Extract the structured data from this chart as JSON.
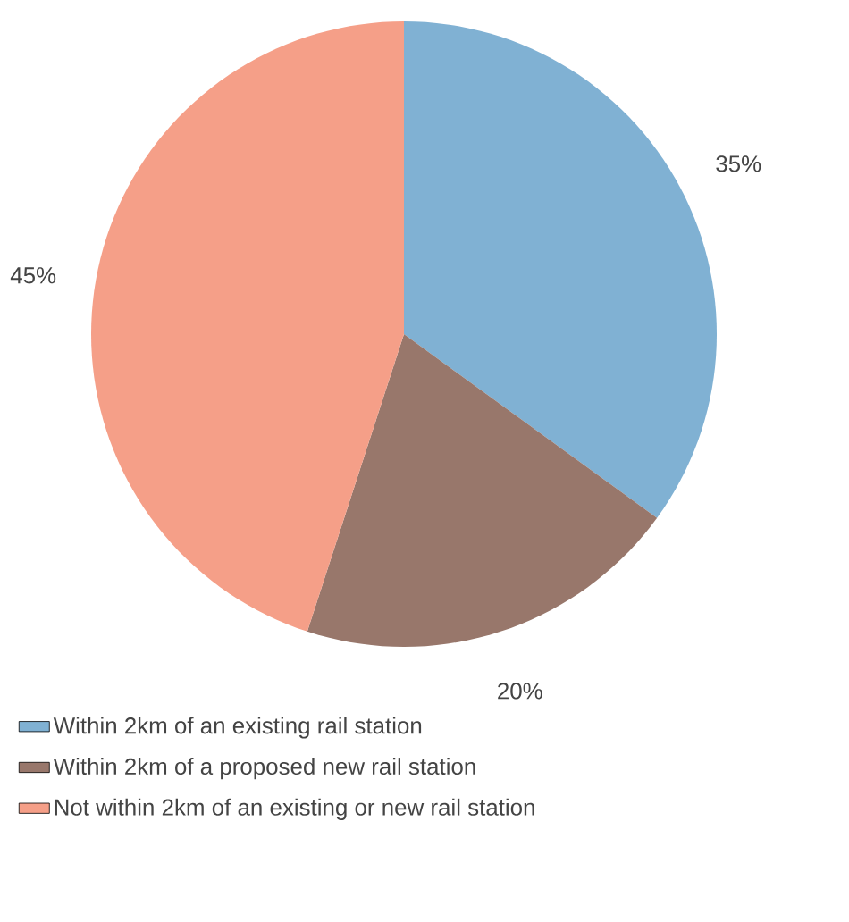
{
  "chart_data": {
    "type": "pie",
    "categories": [
      "Within 2km of an existing rail station",
      "Within 2km of a proposed new rail station",
      "Not within 2km of an existing or new rail station"
    ],
    "values": [
      35,
      20,
      45
    ],
    "value_labels": [
      "35%",
      "20%",
      "45%"
    ],
    "colors": [
      "#80b1d3",
      "#98776b",
      "#f59f88"
    ],
    "legend": "bottom"
  }
}
